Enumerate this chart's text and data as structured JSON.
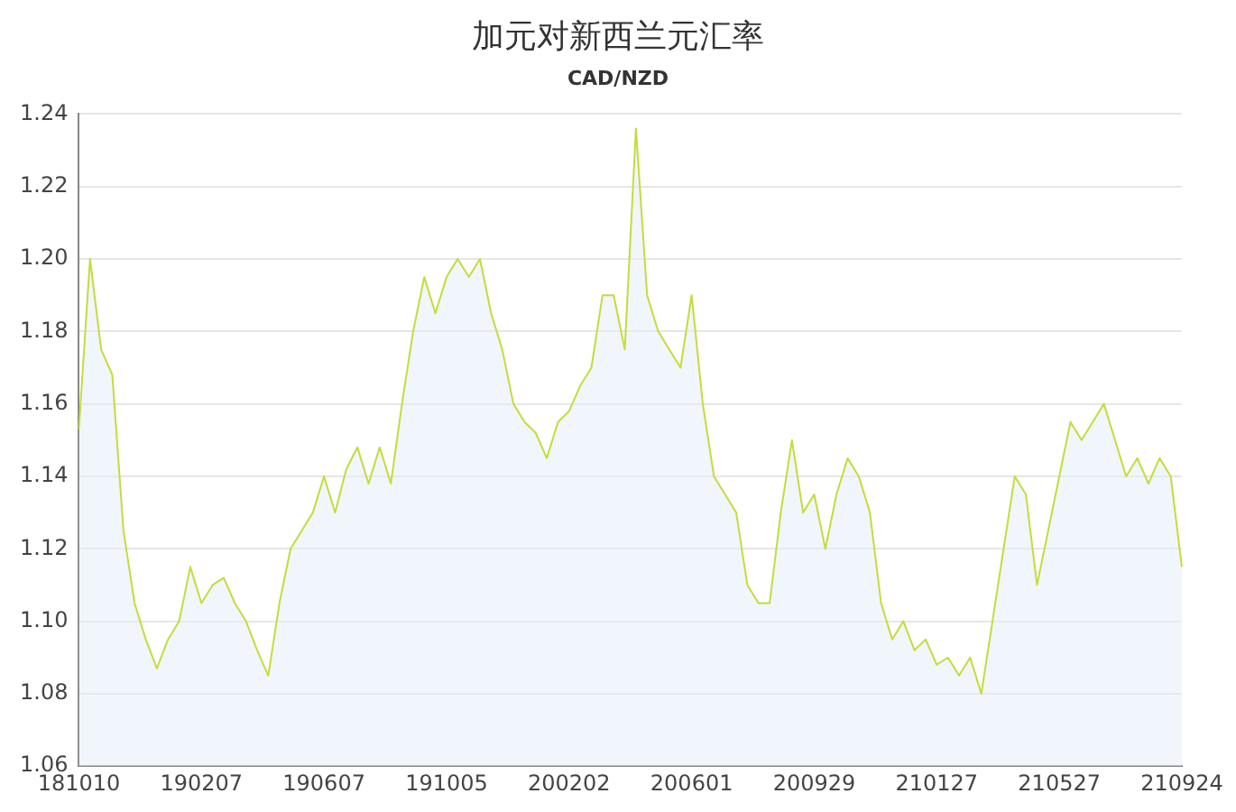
{
  "chart_data": {
    "type": "area",
    "title": "加元对新西兰元汇率",
    "subtitle": "CAD/NZD",
    "categories": [
      "181010",
      null,
      null,
      null,
      null,
      null,
      null,
      null,
      null,
      null,
      null,
      "190207",
      null,
      null,
      null,
      null,
      null,
      null,
      null,
      null,
      null,
      null,
      "190607",
      null,
      null,
      null,
      null,
      null,
      null,
      null,
      null,
      null,
      null,
      "191005",
      null,
      null,
      null,
      null,
      null,
      null,
      null,
      null,
      null,
      null,
      "200202",
      null,
      null,
      null,
      null,
      null,
      null,
      null,
      null,
      null,
      null,
      "200601",
      null,
      null,
      null,
      null,
      null,
      null,
      null,
      null,
      null,
      null,
      "200929",
      null,
      null,
      null,
      null,
      null,
      null,
      null,
      null,
      null,
      null,
      "210127",
      null,
      null,
      null,
      null,
      null,
      null,
      null,
      null,
      null,
      null,
      "210527",
      null,
      null,
      null,
      null,
      null,
      null,
      null,
      null,
      null,
      null,
      "210924"
    ],
    "series": [
      {
        "color": "#c5dc3a",
        "values": [
          1.153,
          1.2,
          1.175,
          1.168,
          1.125,
          1.105,
          1.095,
          1.087,
          1.095,
          1.1,
          1.115,
          1.105,
          1.11,
          1.112,
          1.105,
          1.1,
          1.092,
          1.085,
          1.105,
          1.12,
          1.125,
          1.13,
          1.14,
          1.13,
          1.142,
          1.148,
          1.138,
          1.148,
          1.138,
          1.16,
          1.18,
          1.195,
          1.185,
          1.195,
          1.2,
          1.195,
          1.2,
          1.185,
          1.175,
          1.16,
          1.155,
          1.152,
          1.145,
          1.155,
          1.158,
          1.165,
          1.17,
          1.19,
          1.19,
          1.175,
          1.236,
          1.19,
          1.18,
          1.175,
          1.17,
          1.19,
          1.16,
          1.14,
          1.135,
          1.13,
          1.11,
          1.105,
          1.105,
          1.13,
          1.15,
          1.13,
          1.135,
          1.12,
          1.135,
          1.145,
          1.14,
          1.13,
          1.105,
          1.095,
          1.1,
          1.092,
          1.095,
          1.088,
          1.09,
          1.085,
          1.09,
          1.08,
          1.1,
          1.12,
          1.14,
          1.135,
          1.11,
          1.125,
          1.14,
          1.155,
          1.15,
          1.155,
          1.16,
          1.15,
          1.14,
          1.145,
          1.138,
          1.145,
          1.14,
          1.115
        ]
      }
    ],
    "ylim": [
      1.06,
      1.24
    ],
    "yticks": [
      1.06,
      1.08,
      {
        "value": 1.1,
        "label": "1.10"
      },
      1.12,
      1.14,
      1.16,
      1.18,
      {
        "value": 1.2,
        "label": "1.20"
      },
      1.22,
      1.24
    ],
    "grid": "y",
    "legend": false,
    "marker": "none"
  }
}
